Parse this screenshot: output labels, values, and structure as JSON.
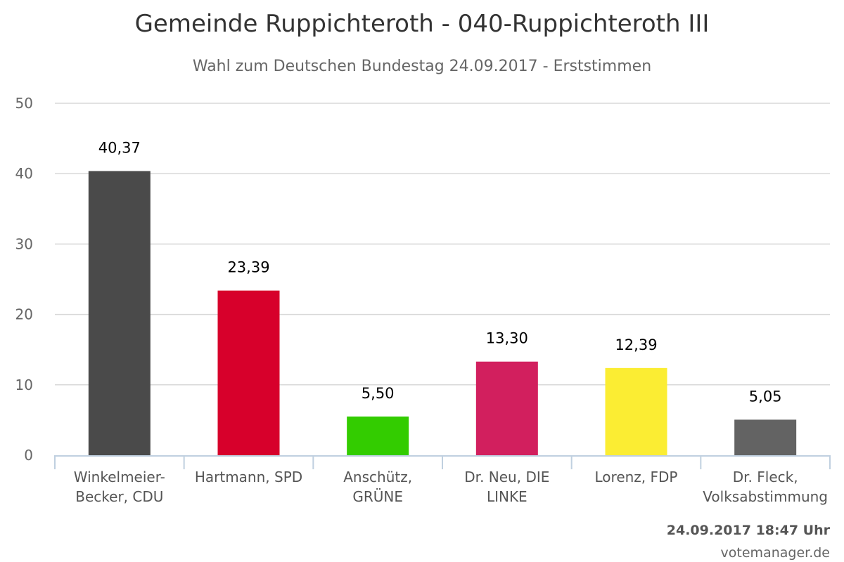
{
  "chart_data": {
    "type": "bar",
    "title": "Gemeinde Ruppichteroth - 040-Ruppichteroth III",
    "subtitle": "Wahl zum Deutschen Bundestag 24.09.2017 - Erststimmen",
    "categories": [
      [
        "Winkelmeier-",
        "Becker, CDU"
      ],
      [
        "Hartmann, SPD"
      ],
      [
        "Anschütz,",
        "GRÜNE"
      ],
      [
        "Dr. Neu, DIE",
        "LINKE"
      ],
      [
        "Lorenz, FDP"
      ],
      [
        "Dr. Fleck,",
        "Volksabstimmung"
      ]
    ],
    "values": [
      40.37,
      23.39,
      5.5,
      13.3,
      12.39,
      5.05
    ],
    "value_labels": [
      "40,37",
      "23,39",
      "5,50",
      "13,30",
      "12,39",
      "5,05"
    ],
    "colors": [
      "#4a4a4a",
      "#d7002b",
      "#33cc00",
      "#d21f5e",
      "#fbed33",
      "#636363"
    ],
    "ylim": [
      0,
      50
    ],
    "yticks": [
      0,
      10,
      20,
      30,
      40,
      50
    ],
    "grid": true,
    "legend": "none"
  },
  "footer": {
    "timestamp": "24.09.2017 18:47 Uhr",
    "credit": "votemanager.de"
  }
}
